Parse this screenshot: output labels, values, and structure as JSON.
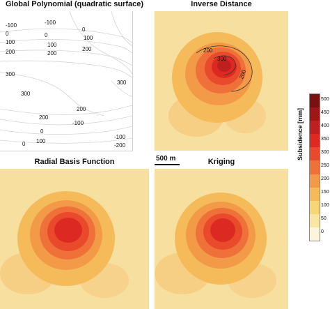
{
  "panels": [
    {
      "id": "global-polynomial",
      "title": "Global Polynomial (quadratic surface)"
    },
    {
      "id": "inverse-distance",
      "title": "Inverse Distance"
    },
    {
      "id": "radial-basis",
      "title": "Radial Basis Function"
    },
    {
      "id": "kriging",
      "title": "Kriging"
    }
  ],
  "contour_labels_polynomial": [
    "-100",
    "0",
    "100",
    "200",
    "-100",
    "0",
    "100",
    "200",
    "300",
    "0",
    "100",
    "300",
    "300",
    "200",
    "200",
    "-100",
    "0",
    "100",
    "200",
    "0",
    "-100",
    "-200"
  ],
  "contour_labels_inverse": [
    "200",
    "300",
    "200"
  ],
  "scale_bar": {
    "label": "500 m"
  },
  "legend": {
    "title": "Subsidence [mm]",
    "ticks": [
      "500",
      "450",
      "400",
      "350",
      "300",
      "250",
      "200",
      "150",
      "100",
      "50",
      "0"
    ],
    "colors": [
      "#7a1010",
      "#9e1616",
      "#c01f1f",
      "#dc2a22",
      "#ea4a2c",
      "#ef7038",
      "#f29a48",
      "#f5bb5a",
      "#f8d577",
      "#fae6a4",
      "#fdf6dc"
    ]
  }
}
